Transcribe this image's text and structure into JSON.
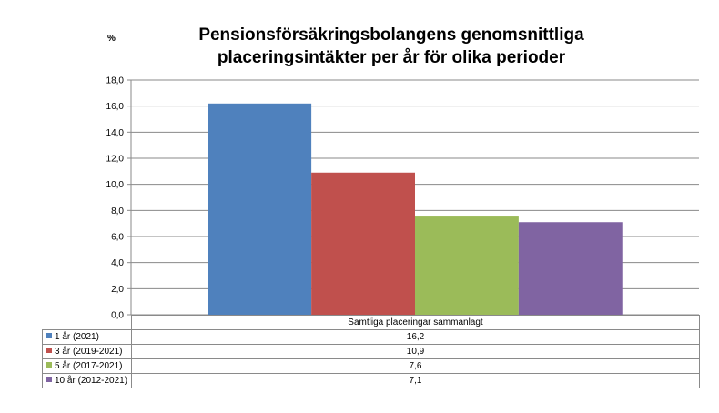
{
  "title_line1": "Pensionsförsäkringsbolangens genomsnittliga",
  "title_line2": "placeringsintäkter per år för olika perioder",
  "unit_label": "%",
  "chart_data": {
    "type": "bar",
    "title": "Pensionsförsäkringsbolangens genomsnittliga placeringsintäkter per år för olika perioder",
    "ylabel": "%",
    "categories": [
      "Samtliga placeringar sammanlagt"
    ],
    "series": [
      {
        "name": "1 år (2021)",
        "values": [
          16.2
        ],
        "value_label": "16,2",
        "color": "#4f81bd"
      },
      {
        "name": "3 år (2019-2021)",
        "values": [
          10.9
        ],
        "value_label": "10,9",
        "color": "#c0504d"
      },
      {
        "name": "5 år (2017-2021)",
        "values": [
          7.6
        ],
        "value_label": "7,6",
        "color": "#9bbb59"
      },
      {
        "name": "10 år (2012-2021)",
        "values": [
          7.1
        ],
        "value_label": "7,1",
        "color": "#8064a2"
      }
    ],
    "ylim": [
      0,
      18
    ],
    "yticks": [
      "0,0",
      "2,0",
      "4,0",
      "6,0",
      "8,0",
      "10,0",
      "12,0",
      "14,0",
      "16,0",
      "18,0"
    ],
    "grid": true,
    "legend": "data-table"
  }
}
